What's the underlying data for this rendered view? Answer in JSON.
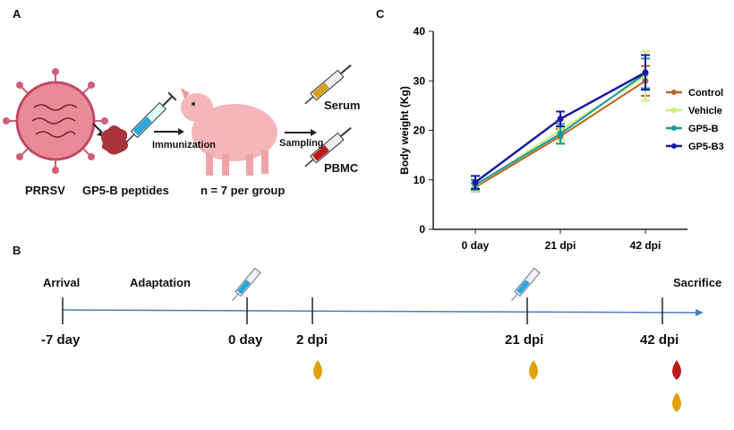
{
  "panels": {
    "a": "A",
    "b": "B",
    "c": "C"
  },
  "panel_a": {
    "virus": "PRRSV",
    "peptides": "GP5-B peptides",
    "immunization": "Immunization",
    "group": "n = 7 per group",
    "sampling": "Sampling",
    "serum": "Serum",
    "pbmc": "PBMC"
  },
  "panel_b": {
    "arrival": "Arrival",
    "adaptation": "Adaptation",
    "sacrifice": "Sacrifice",
    "ticks": [
      "-7 day",
      "0 day",
      "2 dpi",
      "21 dpi",
      "42 dpi"
    ],
    "colors": {
      "timeline": "#4a7cc0",
      "serum_drop": "#e0a000",
      "blood_drop": "#c01818"
    }
  },
  "chart_data": {
    "type": "line",
    "categories": [
      "0 day",
      "21 dpi",
      "42 dpi"
    ],
    "ylabel": "Body weight (Kg)",
    "ylim": [
      0,
      40
    ],
    "yticks": [
      0,
      10,
      20,
      30,
      40
    ],
    "legend": "right",
    "grid": false,
    "series": [
      {
        "name": "Control",
        "color": "#b8661e",
        "values": [
          8.5,
          18.8,
          30.0
        ],
        "errors": [
          0.8,
          1.5,
          3.0
        ]
      },
      {
        "name": "Vehicle",
        "color": "#c8f07a",
        "values": [
          8.8,
          20.0,
          31.0
        ],
        "errors": [
          1.0,
          2.0,
          5.0
        ]
      },
      {
        "name": "GP5-B",
        "color": "#1a9a98",
        "values": [
          9.0,
          19.3,
          31.5
        ],
        "errors": [
          1.0,
          2.0,
          3.0
        ]
      },
      {
        "name": "GP5-B3",
        "color": "#1a1aa0",
        "values": [
          9.5,
          22.3,
          31.7
        ],
        "errors": [
          1.3,
          1.5,
          3.5
        ]
      }
    ]
  }
}
